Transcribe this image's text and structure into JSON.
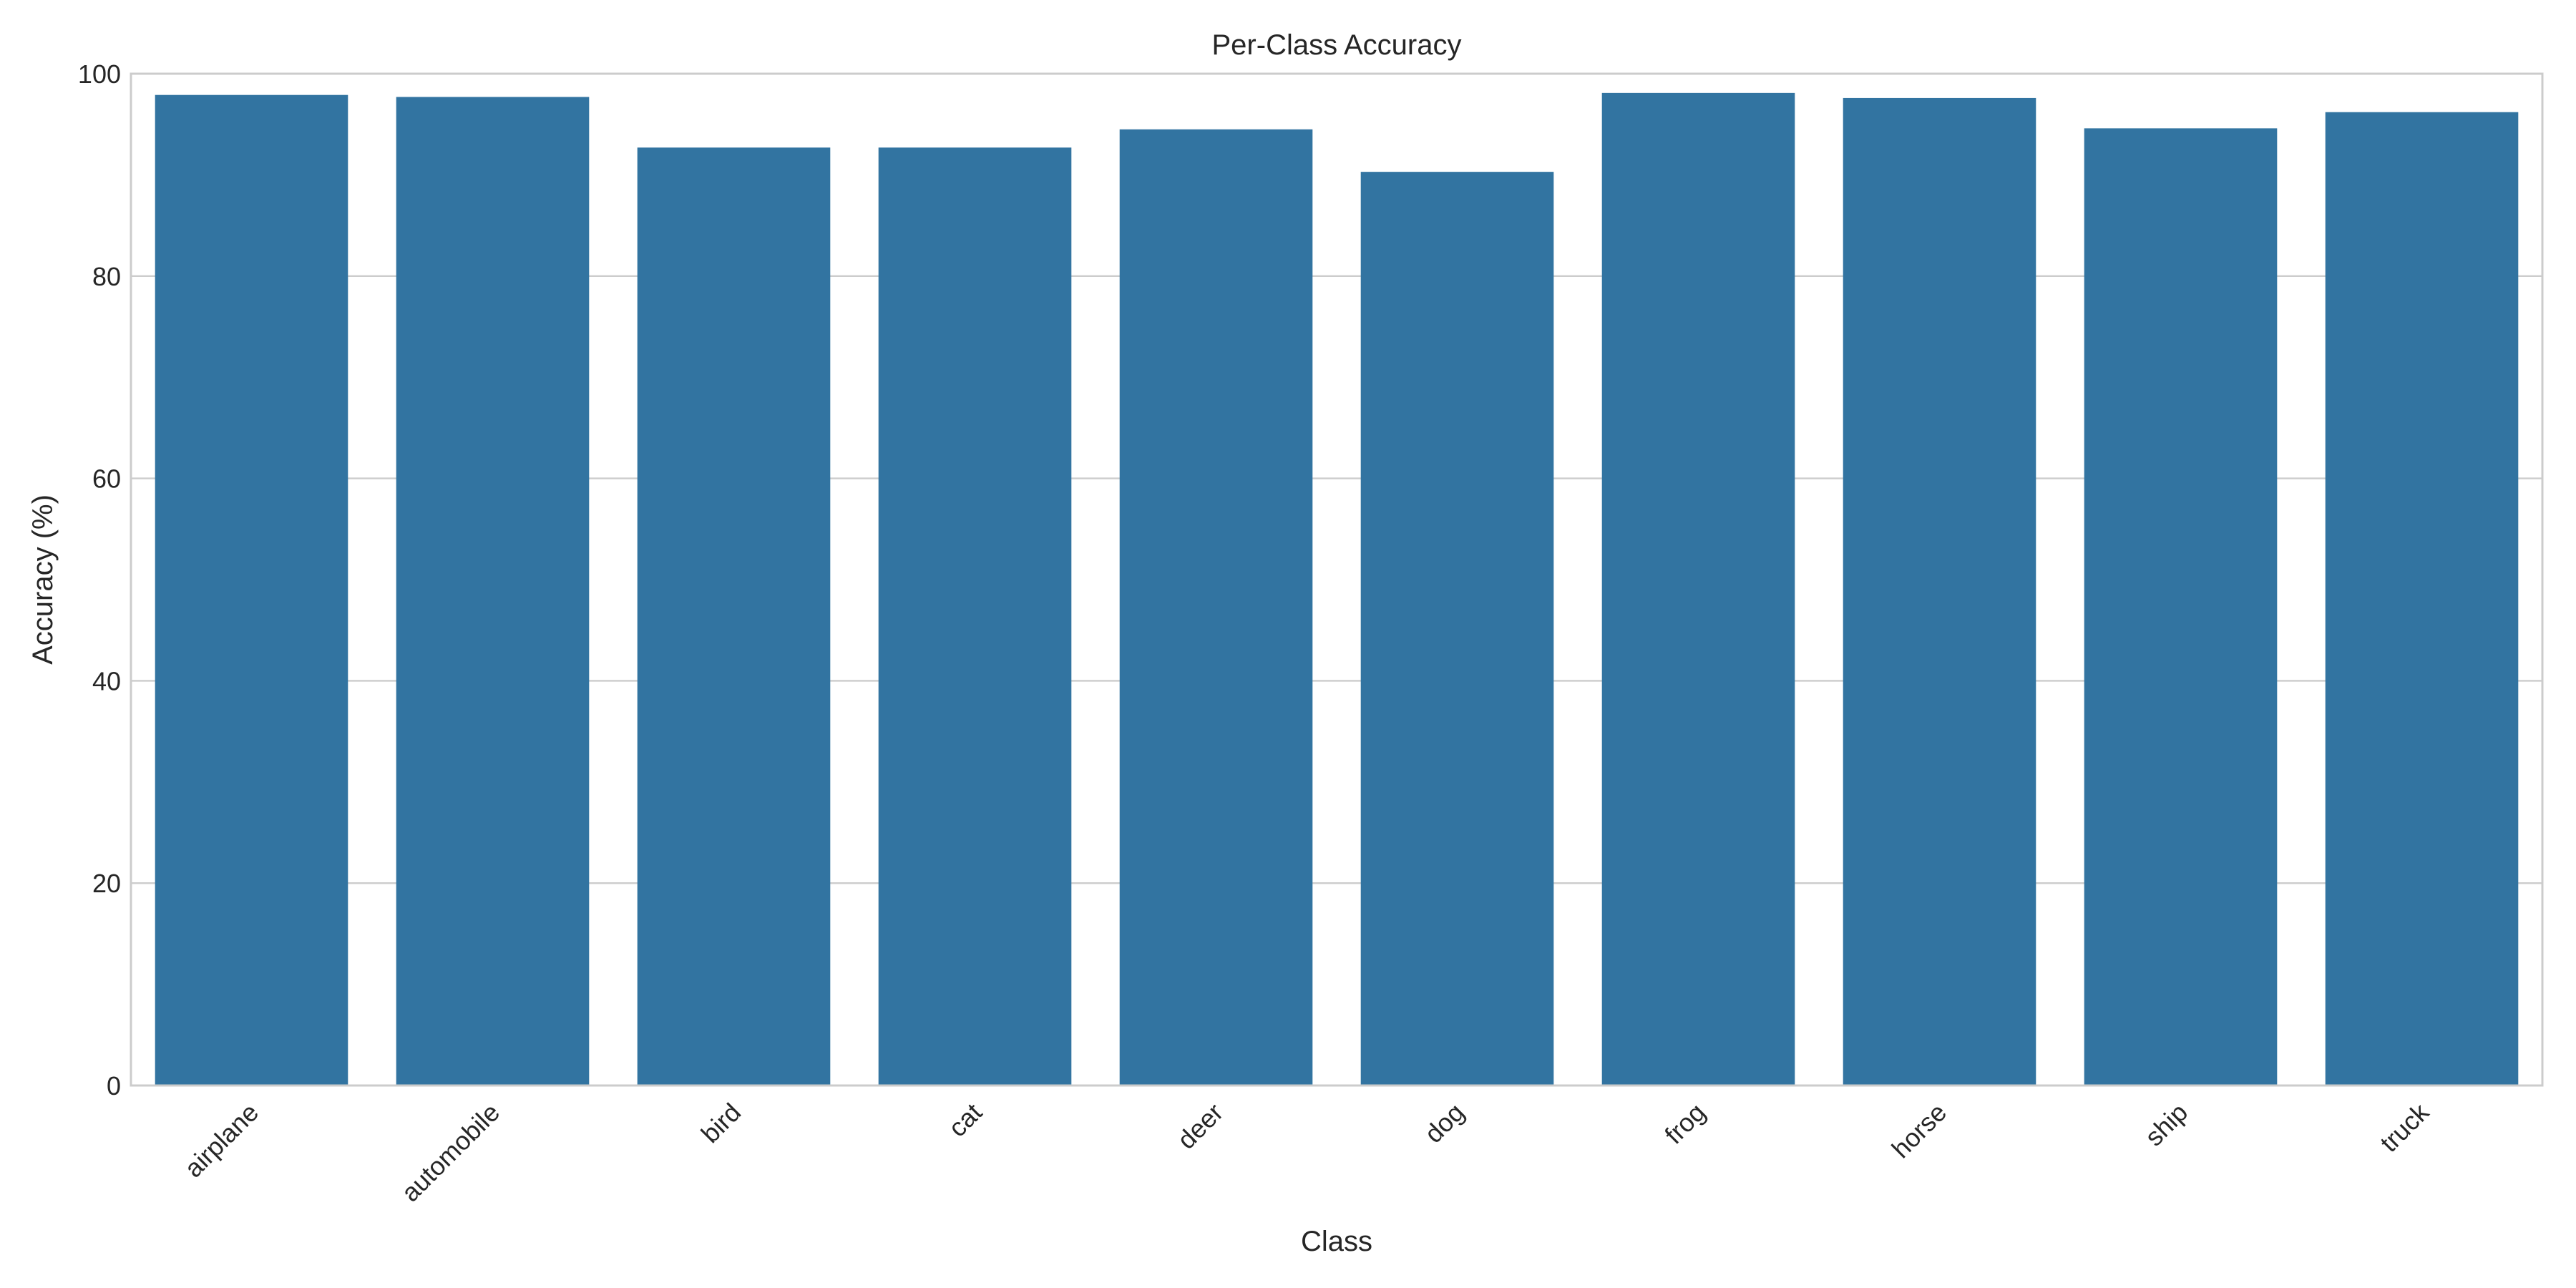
{
  "chart_data": {
    "type": "bar",
    "title": "Per-Class Accuracy",
    "xlabel": "Class",
    "ylabel": "Accuracy (%)",
    "categories": [
      "airplane",
      "automobile",
      "bird",
      "cat",
      "deer",
      "dog",
      "frog",
      "horse",
      "ship",
      "truck"
    ],
    "values": [
      97.9,
      97.7,
      92.7,
      92.7,
      94.5,
      90.3,
      98.1,
      97.6,
      94.6,
      96.2
    ],
    "ylim": [
      0,
      100
    ],
    "yticks": [
      0,
      20,
      40,
      60,
      80,
      100
    ],
    "grid": true,
    "bar_color": "#3274a1",
    "grid_color": "#cccccc"
  }
}
